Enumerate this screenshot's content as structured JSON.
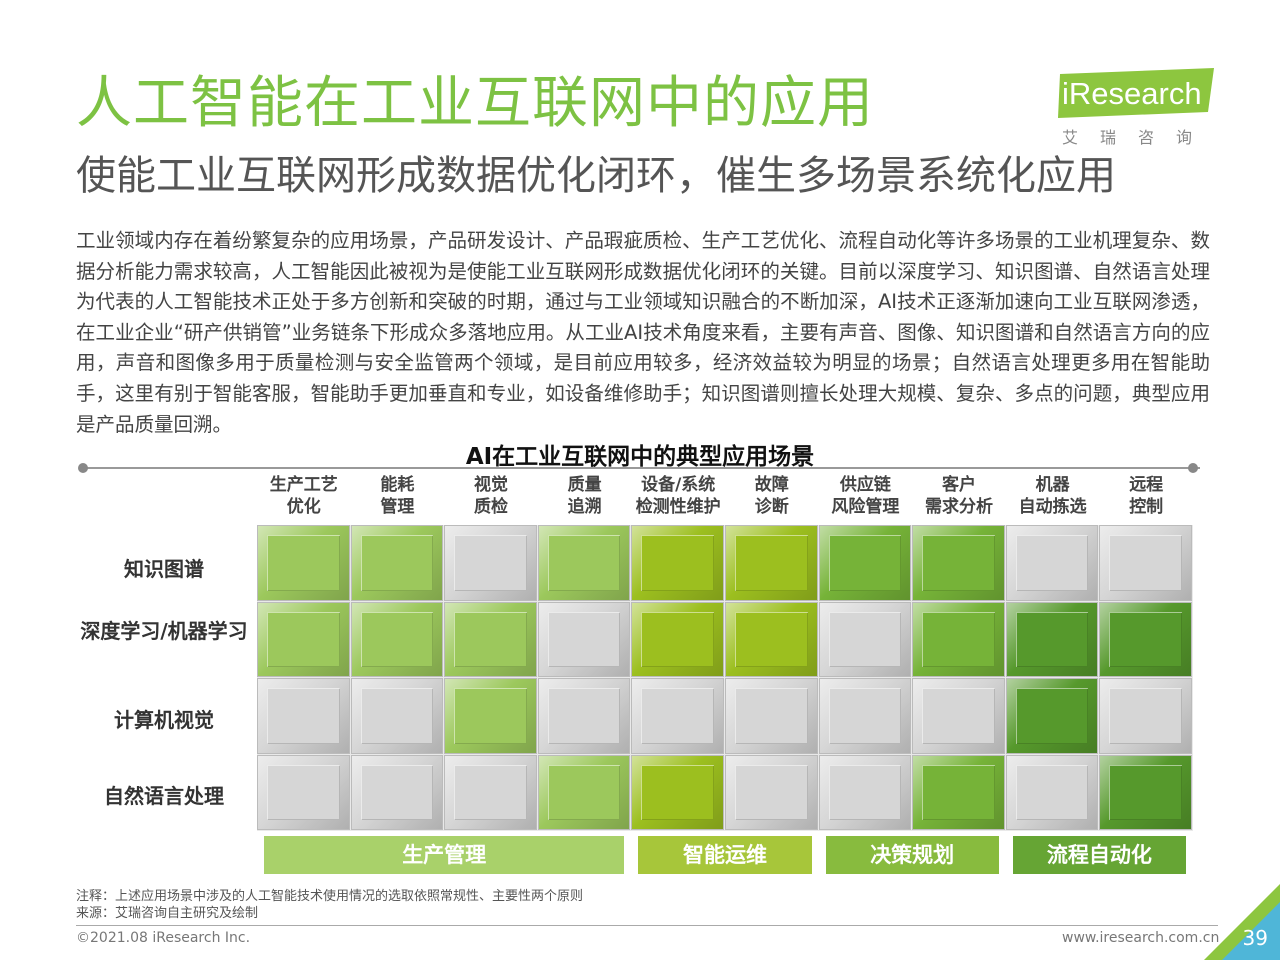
{
  "title": "人工智能在工业互联网中的应用",
  "subtitle": "使能工业互联网形成数据优化闭环，催生多场景系统化应用",
  "logo": {
    "text": "iResearch",
    "sub": "艾瑞咨询"
  },
  "body": "工业领域内存在着纷繁复杂的应用场景，产品研发设计、产品瑕疵质检、生产工艺优化、流程自动化等许多场景的工业机理复杂、数据分析能力需求较高，人工智能因此被视为是使能工业互联网形成数据优化闭环的关键。目前以深度学习、知识图谱、自然语言处理为代表的人工智能技术正处于多方创新和突破的时期，通过与工业领域知识融合的不断加深，AI技术正逐渐加速向工业互联网渗透，在工业企业“研产供销管”业务链条下形成众多落地应用。从工业AI技术角度来看，主要有声音、图像、知识图谱和自然语言方向的应用，声音和图像多用于质量检测与安全监管两个领域，是目前应用较多，经济效益较为明显的场景；自然语言处理更多用在智能助手，这里有别于智能客服，智能助手更加垂直和专业，如设备维修助手；知识图谱则擅长处理大规模、复杂、多点的问题，典型应用是产品质量回溯。",
  "chart": {
    "title": "AI在工业互联网中的典型应用场景",
    "columns": [
      [
        "生产工艺",
        "优化"
      ],
      [
        "能耗",
        "管理"
      ],
      [
        "视觉",
        "质检"
      ],
      [
        "质量",
        "追溯"
      ],
      [
        "设备/系统",
        "检测性维护"
      ],
      [
        "故障",
        "诊断"
      ],
      [
        "供应链",
        "风险管理"
      ],
      [
        "客户",
        "需求分析"
      ],
      [
        "机器",
        "自动拣选"
      ],
      [
        "远程",
        "控制"
      ]
    ],
    "rows": [
      "知识图谱",
      "深度学习/机器学习",
      "计算机视觉",
      "自然语言处理"
    ],
    "matrix": [
      [
        1,
        1,
        0,
        1,
        1,
        1,
        1,
        1,
        0,
        0
      ],
      [
        1,
        1,
        1,
        0,
        1,
        1,
        0,
        1,
        1,
        1
      ],
      [
        0,
        0,
        1,
        0,
        0,
        0,
        0,
        0,
        1,
        0
      ],
      [
        0,
        0,
        0,
        1,
        1,
        0,
        0,
        1,
        0,
        1
      ]
    ],
    "categories": [
      {
        "label": "生产管理",
        "span": [
          0,
          3
        ],
        "color": "#a9d16a"
      },
      {
        "label": "智能运维",
        "span": [
          4,
          5
        ],
        "color": "#a7c63a"
      },
      {
        "label": "决策规划",
        "span": [
          6,
          7
        ],
        "color": "#88bb3e"
      },
      {
        "label": "流程自动化",
        "span": [
          8,
          9
        ],
        "color": "#66a534"
      }
    ],
    "colors": {
      "empty": "#d6d6d6",
      "group_colors": [
        "#9cc85c",
        "#9cbf1f",
        "#76b338",
        "#56992c"
      ]
    }
  },
  "notes": [
    "注释：上述应用场景中涉及的人工智能技术使用情况的选取依照常规性、主要性两个原则",
    "来源：艾瑞咨询自主研究及绘制"
  ],
  "footer": {
    "copyright": "©2021.08 iResearch Inc.",
    "url": "www.iresearch.com.cn",
    "page": "39"
  }
}
